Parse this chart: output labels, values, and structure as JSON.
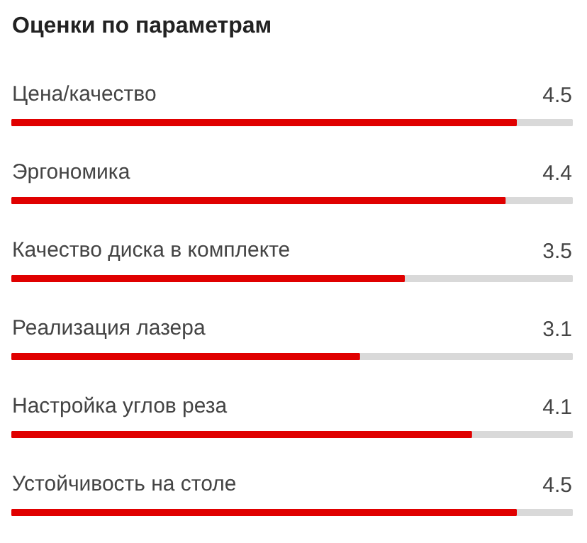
{
  "chart_data": {
    "type": "bar",
    "orientation": "horizontal",
    "title": "Оценки по параметрам",
    "categories": [
      "Цена/качество",
      "Эргономика",
      "Качество диска в комплекте",
      "Реализация лазера",
      "Настройка углов реза",
      "Устойчивость на столе"
    ],
    "values": [
      4.5,
      4.4,
      3.5,
      3.1,
      4.1,
      4.5
    ],
    "color": "#e00000",
    "xlim": [
      0,
      5
    ],
    "data_labels": true,
    "tick_labels": false,
    "grid": false
  }
}
